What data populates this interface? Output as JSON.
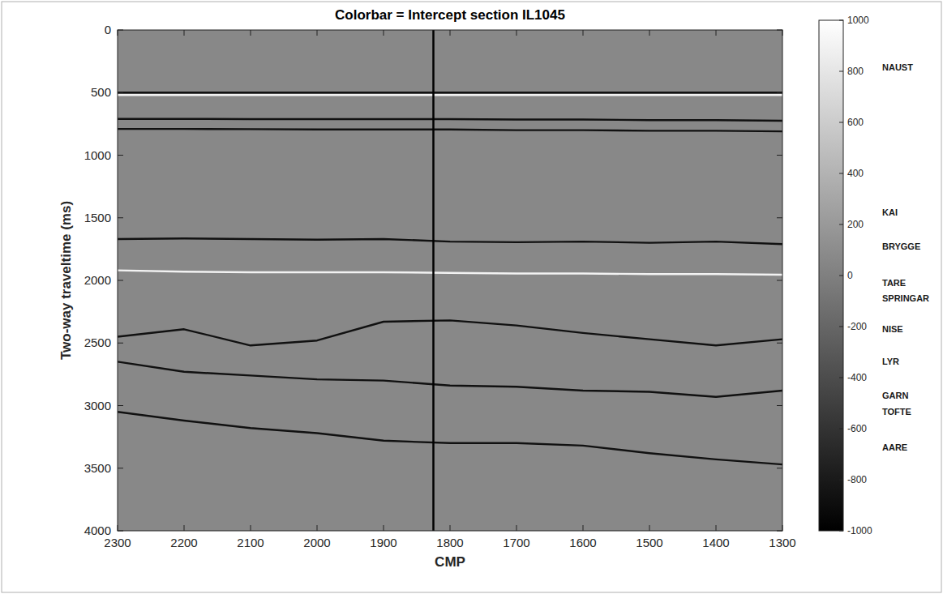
{
  "chart_data": {
    "type": "line",
    "title": "Colorbar = Intercept section IL1045",
    "x_label": "CMP",
    "y_label": "Two-way traveltime (ms)",
    "x": [
      2300,
      2200,
      2100,
      2000,
      1900,
      1800,
      1700,
      1600,
      1500,
      1400,
      1300
    ],
    "xlim": [
      2300,
      1300
    ],
    "xticks": [
      2300,
      2200,
      2100,
      2000,
      1900,
      1800,
      1700,
      1600,
      1500,
      1400,
      1300
    ],
    "ylim": [
      0,
      4000
    ],
    "yticks": [
      0,
      500,
      1000,
      1500,
      2000,
      2500,
      3000,
      3500,
      4000
    ],
    "grid": false,
    "vline": 1825,
    "series": [
      {
        "color": "#111111",
        "values": [
          500,
          500,
          500,
          500,
          500,
          500,
          500,
          500,
          500,
          500,
          500
        ]
      },
      {
        "color": "#f2f2f2",
        "values": [
          520,
          520,
          520,
          520,
          520,
          520,
          520,
          520,
          520,
          520,
          520
        ]
      },
      {
        "color": "#111111",
        "values": [
          710,
          710,
          712,
          712,
          712,
          712,
          715,
          715,
          720,
          720,
          725
        ]
      },
      {
        "color": "#111111",
        "values": [
          790,
          790,
          792,
          795,
          795,
          795,
          800,
          800,
          805,
          805,
          810
        ]
      },
      {
        "color": "#111111",
        "values": [
          1670,
          1665,
          1670,
          1675,
          1670,
          1690,
          1695,
          1690,
          1700,
          1690,
          1710
        ]
      },
      {
        "color": "#f2f2f2",
        "values": [
          1920,
          1930,
          1935,
          1935,
          1935,
          1940,
          1945,
          1945,
          1950,
          1950,
          1955
        ]
      },
      {
        "color": "#111111",
        "values": [
          2450,
          2390,
          2520,
          2480,
          2330,
          2320,
          2360,
          2420,
          2470,
          2520,
          2470
        ]
      },
      {
        "color": "#111111",
        "values": [
          2650,
          2730,
          2760,
          2790,
          2800,
          2840,
          2850,
          2880,
          2890,
          2930,
          2880
        ]
      },
      {
        "color": "#111111",
        "values": [
          3050,
          3120,
          3180,
          3220,
          3280,
          3300,
          3300,
          3320,
          3380,
          3430,
          3470
        ]
      }
    ],
    "colorbar": {
      "range": [
        -1000,
        1000
      ],
      "ticks": [
        -1000,
        -800,
        -600,
        -400,
        -200,
        0,
        200,
        400,
        600,
        800,
        1000
      ],
      "colors": [
        "#000000",
        "#ffffff"
      ]
    },
    "annotations": [
      "NAUST",
      "KAI",
      "BRYGGE",
      "TARE",
      "SPRINGAR",
      "NISE",
      "LYR",
      "GARN",
      "TOFTE",
      "AARE"
    ]
  }
}
